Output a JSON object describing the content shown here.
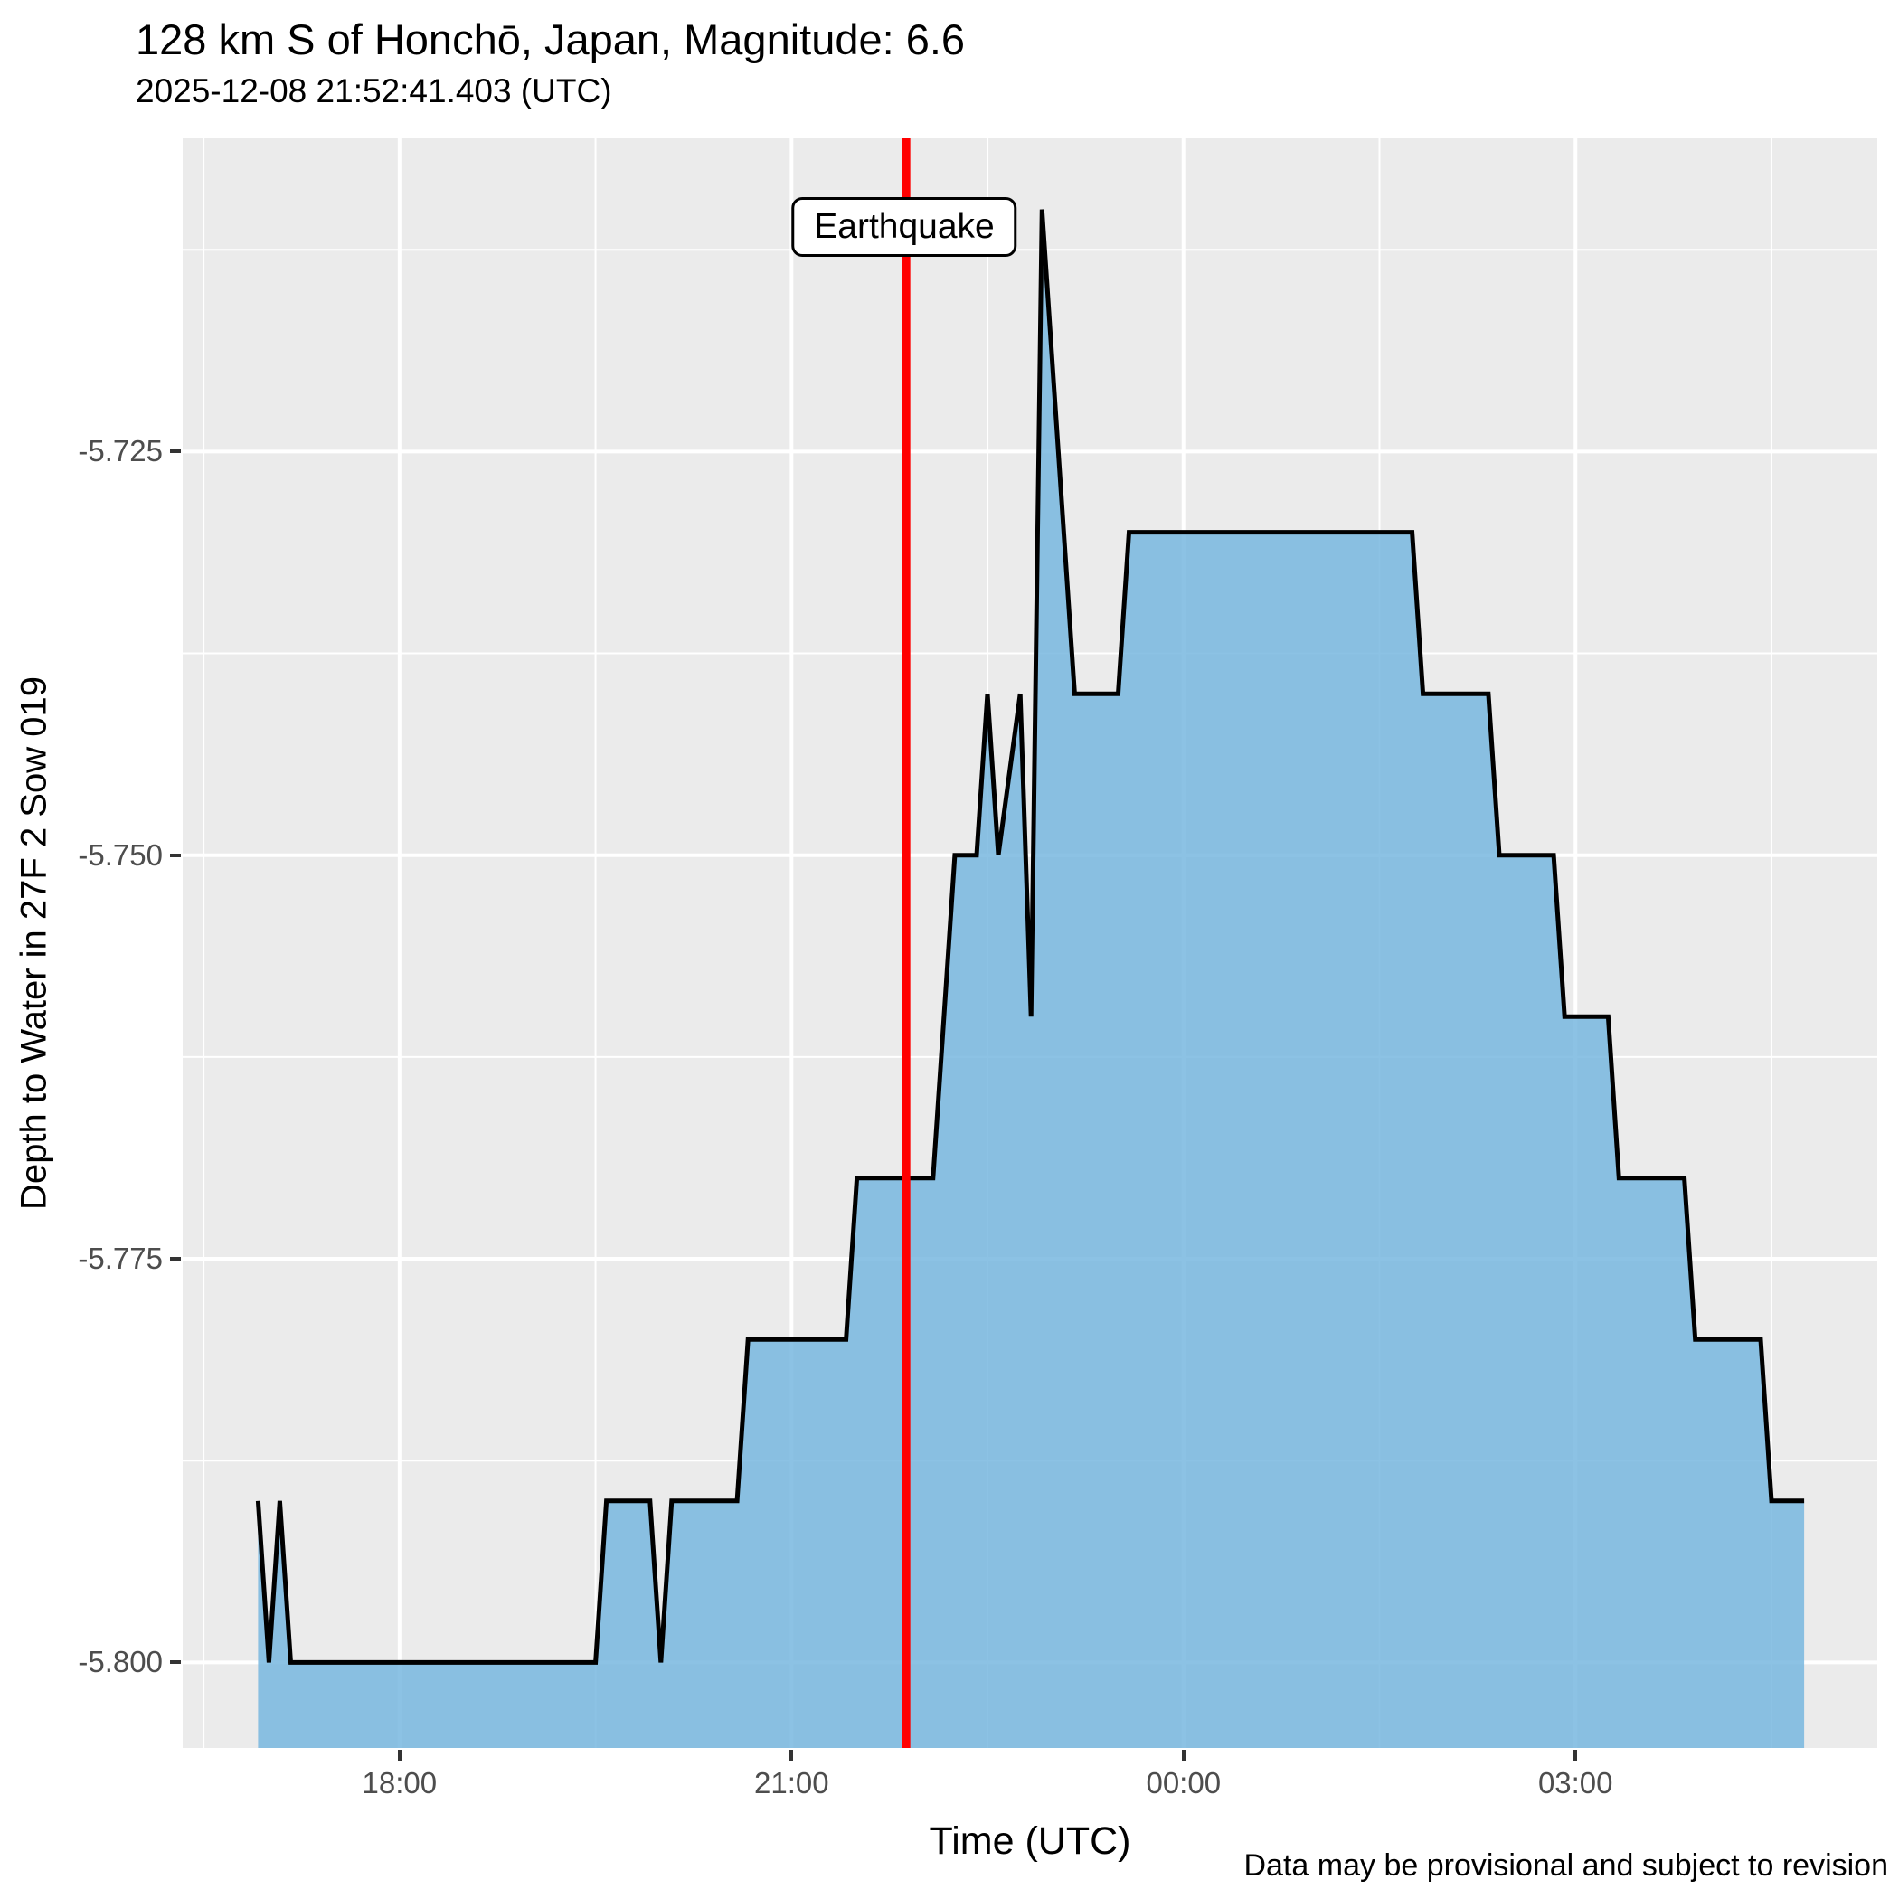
{
  "header": {
    "title": "128 km S of Honchō, Japan, Magnitude: 6.6",
    "subtitle": "2025-12-08 21:52:41.403 (UTC)"
  },
  "chart_data": {
    "type": "area",
    "title": "128 km S of Honchō, Japan, Magnitude: 6.6",
    "subtitle": "2025-12-08 21:52:41.403 (UTC)",
    "xlabel": "Time (UTC)",
    "ylabel": "Depth to Water in 27F 2 Sow 019",
    "caption": "Data may be provisional and subject to revision",
    "legend_position": "none",
    "grid": "on",
    "x_ticks": [
      {
        "label": "18:00",
        "h": 18
      },
      {
        "label": "21:00",
        "h": 21
      },
      {
        "label": "00:00",
        "h": 24
      },
      {
        "label": "03:00",
        "h": 27
      }
    ],
    "x_minor_h": [
      16.5,
      19.5,
      22.5,
      25.5,
      28.5
    ],
    "y_ticks": [
      {
        "label": "-5.725",
        "v": -5.725
      },
      {
        "label": "-5.750",
        "v": -5.75
      },
      {
        "label": "-5.775",
        "v": -5.775
      },
      {
        "label": "-5.800",
        "v": -5.8
      }
    ],
    "y_minor_v": [
      -5.7125,
      -5.7375,
      -5.7625,
      -5.7875
    ],
    "x_domain_h": [
      16.34,
      29.31
    ],
    "y_domain": [
      -5.8053,
      -5.7056
    ],
    "earthquake": {
      "label": "Earthquake",
      "time": "21:52:41.403",
      "time_h": 21.878
    },
    "series": [
      {
        "name": "depth_to_water",
        "points": [
          {
            "t": "16:55",
            "h": 16.917,
            "v": -5.79
          },
          {
            "t": "17:00",
            "h": 17.0,
            "v": -5.8
          },
          {
            "t": "17:05",
            "h": 17.083,
            "v": -5.79
          },
          {
            "t": "17:10",
            "h": 17.167,
            "v": -5.8
          },
          {
            "t": "19:30",
            "h": 19.5,
            "v": -5.8
          },
          {
            "t": "19:35",
            "h": 19.583,
            "v": -5.79
          },
          {
            "t": "19:55",
            "h": 19.917,
            "v": -5.79
          },
          {
            "t": "20:00",
            "h": 20.0,
            "v": -5.8
          },
          {
            "t": "20:05",
            "h": 20.083,
            "v": -5.79
          },
          {
            "t": "20:35",
            "h": 20.583,
            "v": -5.79
          },
          {
            "t": "20:40",
            "h": 20.667,
            "v": -5.78
          },
          {
            "t": "21:25",
            "h": 21.417,
            "v": -5.78
          },
          {
            "t": "21:30",
            "h": 21.5,
            "v": -5.77
          },
          {
            "t": "22:05",
            "h": 22.083,
            "v": -5.77
          },
          {
            "t": "22:10",
            "h": 22.167,
            "v": -5.76
          },
          {
            "t": "22:15",
            "h": 22.25,
            "v": -5.75
          },
          {
            "t": "22:25",
            "h": 22.417,
            "v": -5.75
          },
          {
            "t": "22:30",
            "h": 22.5,
            "v": -5.74
          },
          {
            "t": "22:35",
            "h": 22.583,
            "v": -5.75
          },
          {
            "t": "22:45",
            "h": 22.75,
            "v": -5.74
          },
          {
            "t": "22:50",
            "h": 22.833,
            "v": -5.76
          },
          {
            "t": "22:55",
            "h": 22.917,
            "v": -5.71
          },
          {
            "t": "23:10",
            "h": 23.167,
            "v": -5.74
          },
          {
            "t": "23:30",
            "h": 23.5,
            "v": -5.74
          },
          {
            "t": "23:35",
            "h": 23.583,
            "v": -5.73
          },
          {
            "t": "01:45",
            "h": 25.75,
            "v": -5.73
          },
          {
            "t": "01:50",
            "h": 25.833,
            "v": -5.74
          },
          {
            "t": "02:20",
            "h": 26.333,
            "v": -5.74
          },
          {
            "t": "02:25",
            "h": 26.417,
            "v": -5.75
          },
          {
            "t": "02:50",
            "h": 26.833,
            "v": -5.75
          },
          {
            "t": "02:55",
            "h": 26.917,
            "v": -5.76
          },
          {
            "t": "03:15",
            "h": 27.25,
            "v": -5.76
          },
          {
            "t": "03:20",
            "h": 27.333,
            "v": -5.77
          },
          {
            "t": "03:50",
            "h": 27.833,
            "v": -5.77
          },
          {
            "t": "03:55",
            "h": 27.917,
            "v": -5.78
          },
          {
            "t": "04:25",
            "h": 28.417,
            "v": -5.78
          },
          {
            "t": "04:30",
            "h": 28.5,
            "v": -5.79
          },
          {
            "t": "04:45",
            "h": 28.75,
            "v": -5.79
          }
        ]
      }
    ],
    "colors": {
      "area_fill": "#78B7DF",
      "line": "#000000",
      "earthquake_line": "#FF0000",
      "panel_background": "#EBEBEB",
      "grid_major": "#FFFFFF",
      "grid_minor": "#FFFFFF",
      "tick_text": "#4D4D4D"
    }
  }
}
